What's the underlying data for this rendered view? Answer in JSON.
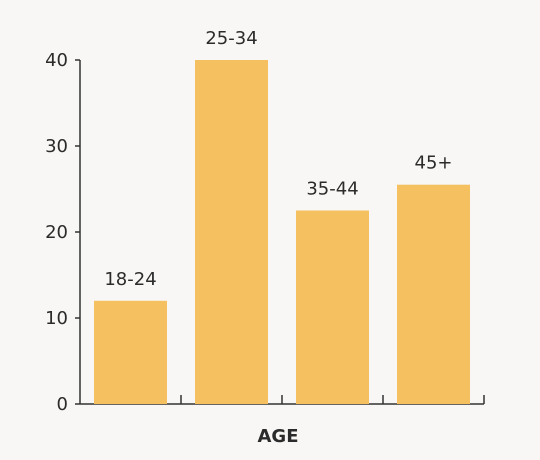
{
  "chart_data": {
    "type": "bar",
    "categories": [
      "18-24",
      "25-34",
      "35-44",
      "45+"
    ],
    "values": [
      12,
      40,
      22.5,
      25.5
    ],
    "title": "",
    "xlabel": "AGE",
    "ylabel": "",
    "ylim": [
      0,
      40
    ],
    "yticks": [
      0,
      10,
      20,
      30,
      40
    ],
    "grid": false,
    "legend": "none",
    "bar_color": "#f5c060",
    "background": "#f9f7f5"
  }
}
